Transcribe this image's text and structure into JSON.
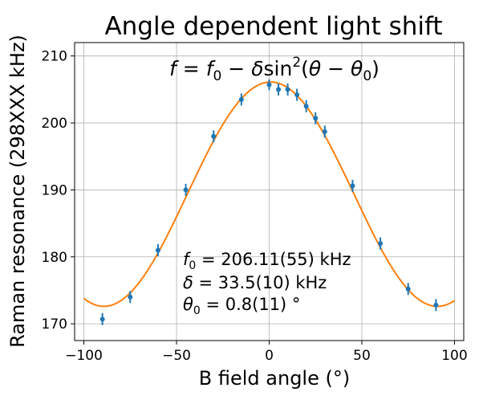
{
  "chart_data": {
    "type": "scatter",
    "title": "Angle dependent light shift",
    "xlabel": "B field angle (°)",
    "ylabel": "Raman resonance (298XXX kHz)",
    "xlim": [
      -105,
      105
    ],
    "ylim": [
      167.5,
      212
    ],
    "xticks": [
      -100,
      -50,
      0,
      50,
      100
    ],
    "yticks": [
      170,
      180,
      190,
      200,
      210
    ],
    "grid": true,
    "colors": {
      "points": "#1f77b4",
      "fit": "#ff7f0e"
    },
    "series": [
      {
        "kind": "errorbar",
        "x": [
          -90,
          -75,
          -60,
          -45,
          -30,
          -15,
          0,
          5,
          10,
          15,
          20,
          25,
          30,
          45,
          60,
          75,
          90
        ],
        "y": [
          170.7,
          174.0,
          181.0,
          190.0,
          198.0,
          203.5,
          205.7,
          205.0,
          205.0,
          204.2,
          202.5,
          200.7,
          198.7,
          190.6,
          182.0,
          175.2,
          172.8
        ],
        "yerr": [
          0.9,
          0.9,
          0.9,
          0.9,
          0.9,
          0.9,
          0.8,
          0.9,
          0.9,
          0.9,
          0.9,
          0.9,
          0.9,
          0.9,
          0.9,
          0.9,
          0.9
        ]
      },
      {
        "kind": "fit",
        "model": "f = f0 - delta*sin^2(theta - theta0)",
        "f0": 206.11,
        "delta": 33.5,
        "theta0": 0.8,
        "x_range": [
          -100,
          100
        ]
      }
    ],
    "annotations": {
      "formula": {
        "f": "f",
        "eq": " = ",
        "f0_base": "f",
        "f0_sub": "0",
        "minus": " − ",
        "delta": "δ",
        "sin": "sin",
        "sq": "2",
        "open": "(",
        "theta": "θ",
        "theta0_base": "θ",
        "theta0_sub": "0",
        "close": ")"
      },
      "fit_params": {
        "f0_base": "f",
        "f0_sub": "0",
        "f0_text": " = 206.11(55) kHz",
        "delta_sym": "δ",
        "delta_text": " = 33.5(10) kHz",
        "theta0_base": "θ",
        "theta0_sub": "0",
        "theta0_text": " = 0.8(11)  °"
      }
    }
  }
}
